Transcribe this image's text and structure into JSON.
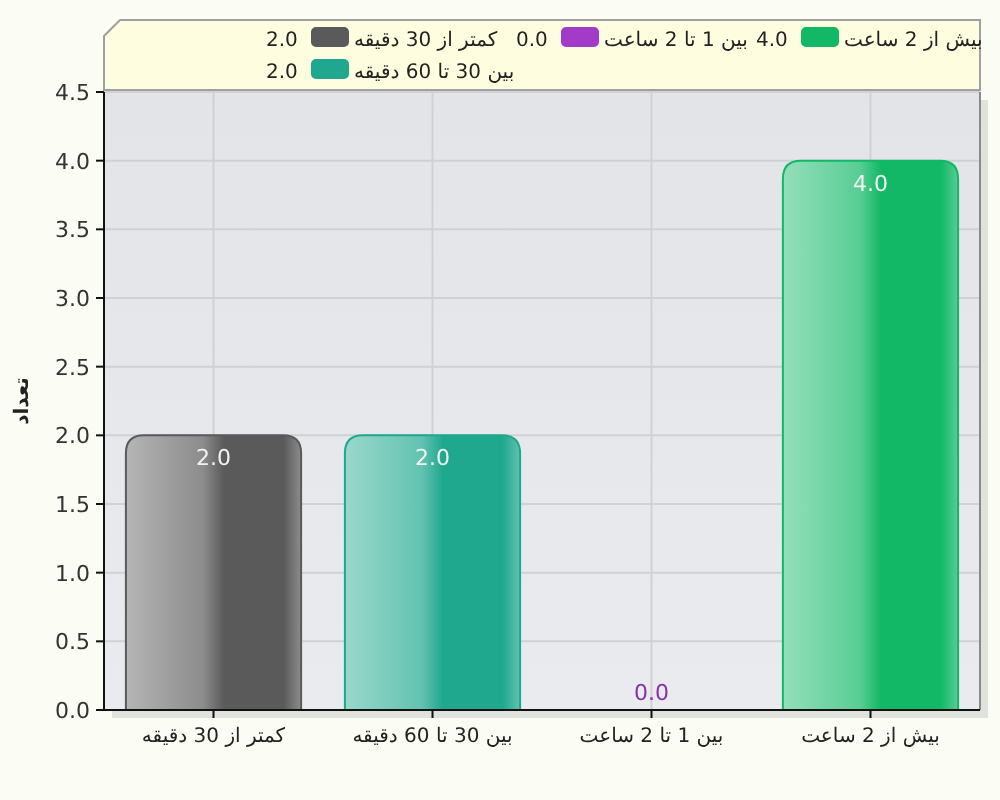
{
  "chart_data": {
    "type": "bar",
    "categories": [
      "کمتر از 30 دقیقه",
      "بین 30 تا 60 دقیقه",
      "بین 1 تا 2 ساعت",
      "بیش از 2 ساعت"
    ],
    "stacked": true,
    "series": [
      {
        "name": "کمتر از 30 دقیقه",
        "color": "#5a5a5a",
        "values": [
          2,
          null,
          null,
          null
        ],
        "value_labels": [
          "2.0",
          null,
          null,
          null
        ]
      },
      {
        "name": "بین 30 تا 60 دقیقه",
        "color": "#1fa88e",
        "values": [
          null,
          2,
          null,
          null
        ],
        "value_labels": [
          null,
          "2.0",
          null,
          null
        ]
      },
      {
        "name": "بین 1 تا 2 ساعت",
        "color": "#a23cc8",
        "values": [
          null,
          null,
          0,
          null
        ],
        "value_labels": [
          null,
          null,
          "0.0",
          null
        ]
      },
      {
        "name": "بیش از 2 ساعت",
        "color": "#12b866",
        "values": [
          null,
          null,
          null,
          4
        ],
        "value_labels": [
          null,
          null,
          null,
          "4.0"
        ]
      }
    ],
    "ylabel": "تعداد",
    "ylim": [
      0,
      4.5
    ],
    "yticks": [
      {
        "value": 0,
        "label": "0.0"
      },
      {
        "value": 0.5,
        "label": "0.5"
      },
      {
        "value": 1,
        "label": "1.0"
      },
      {
        "value": 1.5,
        "label": "1.5"
      },
      {
        "value": 2,
        "label": "2.0"
      },
      {
        "value": 2.5,
        "label": "2.5"
      },
      {
        "value": 3,
        "label": "3.0"
      },
      {
        "value": 3.5,
        "label": "3.5"
      },
      {
        "value": 4,
        "label": "4.0"
      },
      {
        "value": 4.5,
        "label": "4.5"
      }
    ],
    "grid": true,
    "legend": "top"
  }
}
